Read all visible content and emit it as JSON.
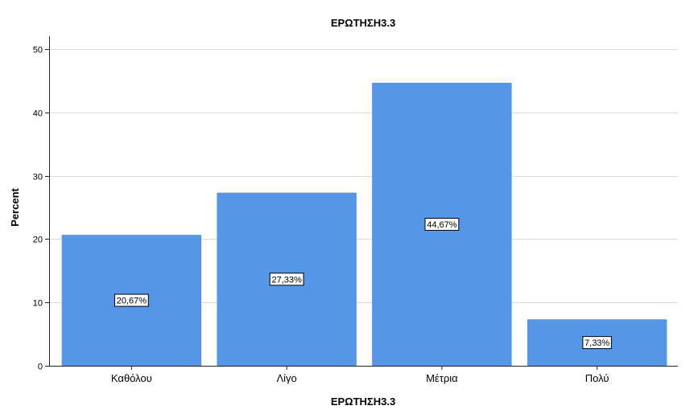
{
  "chart_data": {
    "type": "bar",
    "title": "ΕΡΩΤΗΣΗ3.3",
    "xlabel": "ΕΡΩΤΗΣΗ3.3",
    "ylabel": "Percent",
    "categories": [
      "Καθόλου",
      "Λίγο",
      "Μέτρια",
      "Πολύ"
    ],
    "values": [
      20.67,
      27.33,
      44.67,
      7.33
    ],
    "data_labels": [
      "20,67%",
      "27,33%",
      "44,67%",
      "7,33%"
    ],
    "ylim": [
      0,
      52
    ],
    "yticks": [
      0,
      10,
      20,
      30,
      40,
      50
    ],
    "ytick_labels": [
      "0",
      "10",
      "20",
      "30",
      "40",
      "50"
    ],
    "grid": true,
    "legend": false,
    "colors": {
      "bar": "#5596E6",
      "grid": "#D9D9D9",
      "axis": "#222222",
      "text": "#000000",
      "label_bg": "#ffffff"
    }
  }
}
